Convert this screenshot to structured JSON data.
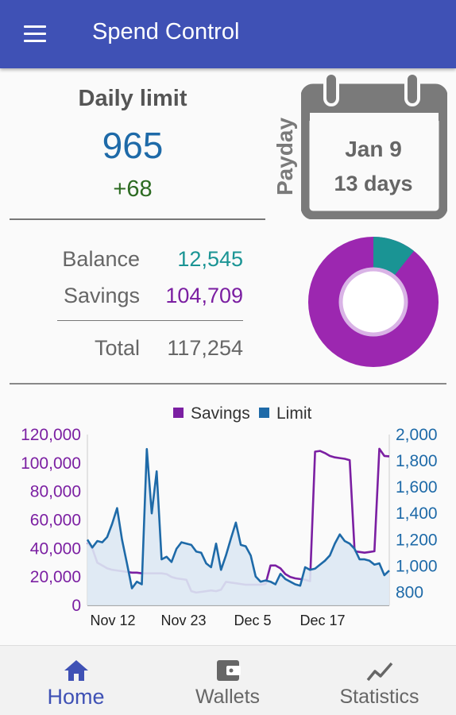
{
  "app": {
    "title": "Spend Control"
  },
  "colors": {
    "primary": "#3f51b5",
    "limit": "#1e6aa8",
    "savings": "#7b1fa2",
    "balance": "#1a9494",
    "positive": "#2d6b22"
  },
  "daily_limit": {
    "label": "Daily limit",
    "value": "965",
    "delta": "+68"
  },
  "payday": {
    "label": "Payday",
    "date": "Jan 9",
    "countdown": "13 days"
  },
  "finance": {
    "balance_label": "Balance",
    "balance_value": "12,545",
    "savings_label": "Savings",
    "savings_value": "104,709",
    "total_label": "Total",
    "total_value": "117,254"
  },
  "donut": {
    "balance": 12545,
    "savings": 104709,
    "balance_color": "#1a9494",
    "savings_color": "#9c27b0"
  },
  "chart_data": {
    "type": "line",
    "legend": [
      "Savings",
      "Limit"
    ],
    "legend_position": "top-center",
    "x_ticks": [
      "Nov 12",
      "Nov 23",
      "Dec 5",
      "Dec 17"
    ],
    "y_left": {
      "label": "Savings",
      "range": [
        0,
        120000
      ],
      "ticks": [
        "120,000",
        "100,000",
        "80,000",
        "60,000",
        "40,000",
        "20,000",
        "0"
      ]
    },
    "y_right": {
      "label": "Limit",
      "range": [
        700,
        2000
      ],
      "ticks": [
        "2,000",
        "1,800",
        "1,600",
        "1,400",
        "1,200",
        "1,000",
        "800"
      ]
    },
    "series": [
      {
        "name": "Savings",
        "axis": "left",
        "color": "#7b1fa2",
        "values": [
          44000,
          40000,
          30000,
          28000,
          26000,
          25000,
          24500,
          24000,
          23500,
          23000,
          23000,
          22500,
          22500,
          22500,
          22500,
          22500,
          22000,
          20000,
          19000,
          18500,
          18000,
          10000,
          9000,
          9500,
          10000,
          10500,
          10000,
          11000,
          16500,
          16000,
          15500,
          15000,
          14500,
          14500,
          14500,
          14500,
          15000,
          28000,
          28000,
          26000,
          22000,
          20000,
          19000,
          18500,
          18000,
          17000,
          108000,
          108500,
          107000,
          105000,
          104000,
          103500,
          103000,
          102000,
          38000,
          37500,
          37000,
          37500,
          38000,
          110000,
          105000,
          104709
        ]
      },
      {
        "name": "Limit",
        "axis": "right",
        "color": "#1e6aa8",
        "values": [
          1200,
          1140,
          1190,
          1180,
          1220,
          1320,
          1440,
          1200,
          1020,
          830,
          880,
          860,
          1890,
          1400,
          1720,
          1050,
          1070,
          1030,
          1130,
          1180,
          1170,
          1160,
          1110,
          1100,
          1020,
          990,
          1170,
          970,
          1080,
          1210,
          1330,
          1160,
          1150,
          1080,
          920,
          880,
          890,
          880,
          860,
          940,
          900,
          880,
          860,
          850,
          990,
          970,
          980,
          1010,
          1040,
          1080,
          1170,
          1240,
          1190,
          1170,
          1130,
          1050,
          1050,
          1040,
          1010,
          1020,
          930,
          965
        ]
      }
    ]
  },
  "nav": {
    "items": [
      {
        "label": "Home",
        "icon": "home-icon",
        "active": true
      },
      {
        "label": "Wallets",
        "icon": "wallet-icon",
        "active": false
      },
      {
        "label": "Statistics",
        "icon": "statistics-icon",
        "active": false
      }
    ]
  }
}
